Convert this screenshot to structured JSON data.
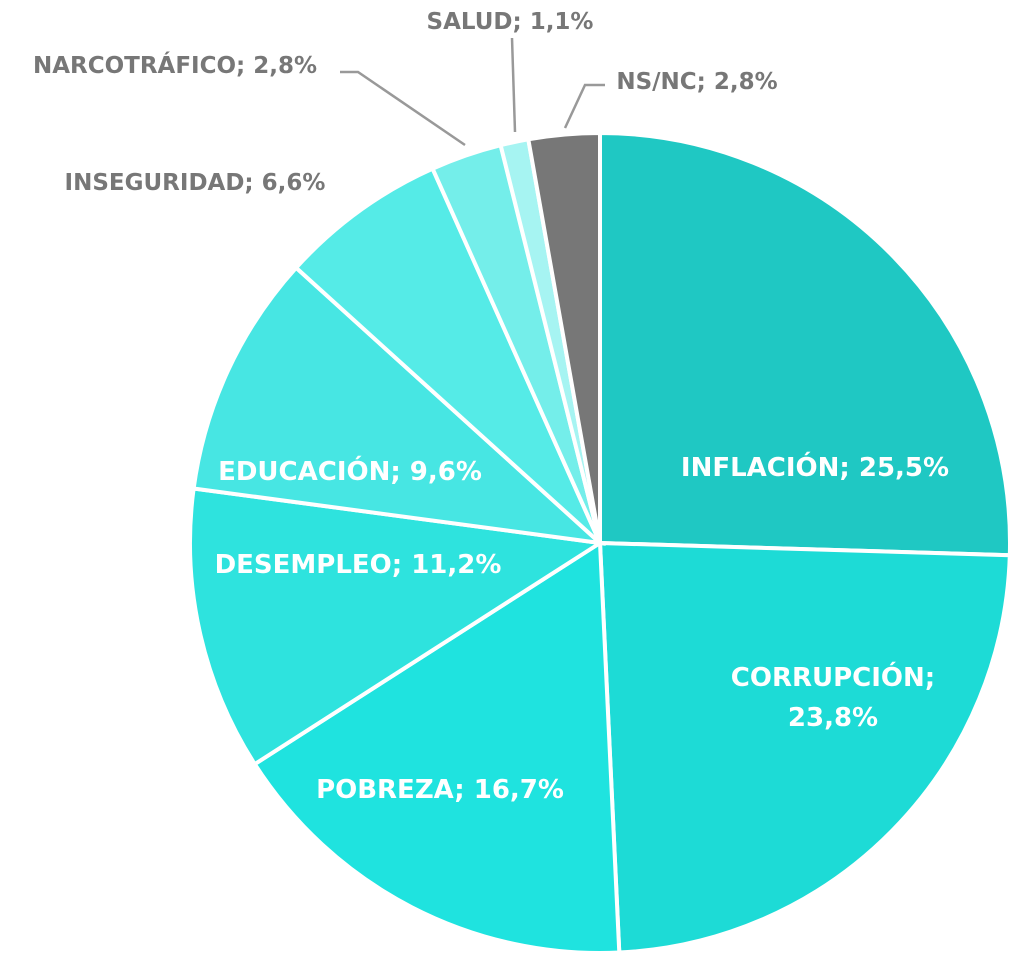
{
  "chart_data": {
    "type": "pie",
    "values": [
      25.5,
      23.8,
      16.7,
      11.2,
      9.6,
      6.6,
      2.8,
      1.1,
      2.8
    ],
    "value_labels": [
      [
        "INFLACIÓN; 25,5%"
      ],
      [
        "CORRUPCIÓN;",
        "23,8%"
      ],
      [
        "POBREZA; 16,7%"
      ],
      [
        "DESEMPLEO; 11,2%"
      ],
      [
        "EDUCACIÓN; 9,6%"
      ],
      [
        "INSEGURIDAD; 6,6%"
      ],
      [
        "NARCOTRÁFICO; 2,8%"
      ],
      [
        "SALUD; 1,1%"
      ],
      [
        "NS/NC; 2,8%"
      ]
    ],
    "colors": [
      "#1fc8c3",
      "#1ddbd6",
      "#1fe3df",
      "#2ee3de",
      "#47e6e3",
      "#55ebe7",
      "#74eeea",
      "#a6f4f2",
      "#777777"
    ]
  }
}
